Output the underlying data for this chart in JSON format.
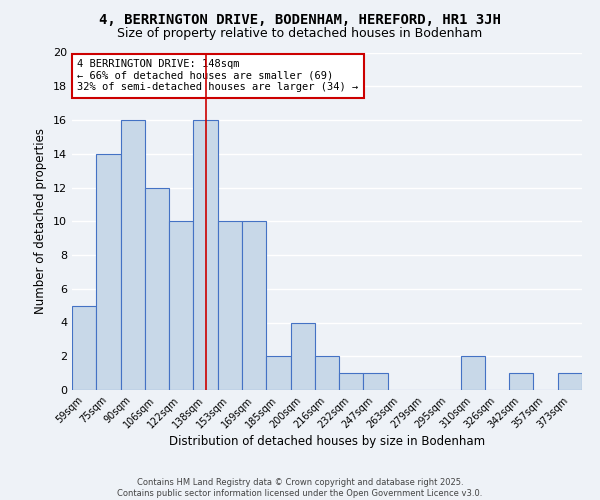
{
  "title": "4, BERRINGTON DRIVE, BODENHAM, HEREFORD, HR1 3JH",
  "subtitle": "Size of property relative to detached houses in Bodenham",
  "xlabel": "Distribution of detached houses by size in Bodenham",
  "ylabel": "Number of detached properties",
  "categories": [
    "59sqm",
    "75sqm",
    "90sqm",
    "106sqm",
    "122sqm",
    "138sqm",
    "153sqm",
    "169sqm",
    "185sqm",
    "200sqm",
    "216sqm",
    "232sqm",
    "247sqm",
    "263sqm",
    "279sqm",
    "295sqm",
    "310sqm",
    "326sqm",
    "342sqm",
    "357sqm",
    "373sqm"
  ],
  "values": [
    5,
    14,
    16,
    12,
    10,
    16,
    10,
    10,
    2,
    4,
    2,
    1,
    1,
    0,
    0,
    0,
    2,
    0,
    1,
    0,
    1
  ],
  "bar_color": "#c8d8e8",
  "bar_edge_color": "#4472c4",
  "highlight_bar_index": 5,
  "highlight_line_color": "#cc0000",
  "ylim": [
    0,
    20
  ],
  "yticks": [
    0,
    2,
    4,
    6,
    8,
    10,
    12,
    14,
    16,
    18,
    20
  ],
  "annotation_text": "4 BERRINGTON DRIVE: 148sqm\n← 66% of detached houses are smaller (69)\n32% of semi-detached houses are larger (34) →",
  "annotation_box_color": "#ffffff",
  "annotation_box_edge_color": "#cc0000",
  "footer_text": "Contains HM Land Registry data © Crown copyright and database right 2025.\nContains public sector information licensed under the Open Government Licence v3.0.",
  "background_color": "#eef2f7",
  "grid_color": "#ffffff",
  "title_fontsize": 10,
  "subtitle_fontsize": 9
}
